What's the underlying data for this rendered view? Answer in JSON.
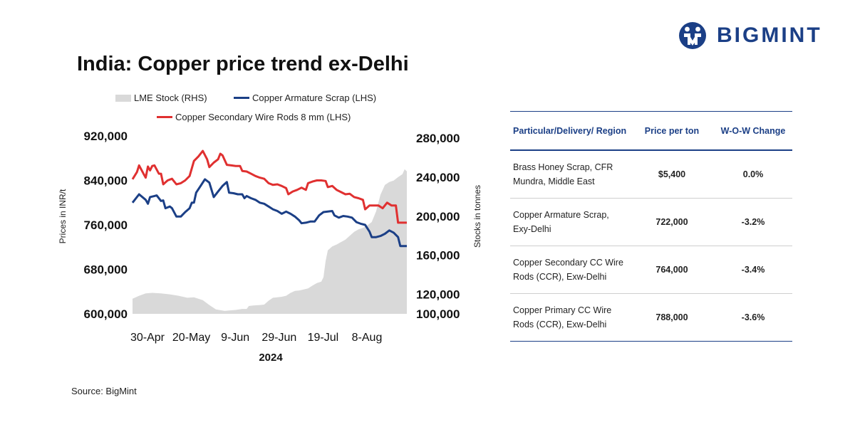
{
  "brand": {
    "name": "BIGMINT",
    "color": "#1b3f86"
  },
  "title": "India: Copper price trend ex-Delhi",
  "source": "Source: BigMint",
  "chart_data": {
    "type": "line",
    "title": "India: Copper price trend ex-Delhi",
    "xlabel": "2024",
    "ylabel_left": "Prices in INR/t",
    "ylabel_right": "Stocks in tonnes",
    "ylim_left": [
      600000,
      920000
    ],
    "ylim_right": [
      100000,
      280000
    ],
    "left_ticks": [
      "600,000",
      "680,000",
      "760,000",
      "840,000",
      "920,000"
    ],
    "left_tick_values": [
      600000,
      680000,
      760000,
      840000,
      920000
    ],
    "right_ticks": [
      "100,000",
      "120,000",
      "160,000",
      "200,000",
      "240,000",
      "280,000"
    ],
    "right_tick_values": [
      100000,
      120000,
      160000,
      200000,
      240000,
      280000
    ],
    "x_ticks": [
      "30-Apr",
      "20-May",
      "9-Jun",
      "29-Jun",
      "19-Jul",
      "8-Aug"
    ],
    "x_tick_days": [
      0,
      20,
      40,
      60,
      80,
      100
    ],
    "x_range_days": [
      0,
      115
    ],
    "series": [
      {
        "name": "LME Stock (RHS)",
        "kind": "area",
        "axis": "right",
        "color": "#d9d9d9",
        "points": [
          [
            0,
            115500
          ],
          [
            3,
            118500
          ],
          [
            6,
            121000
          ],
          [
            9,
            121500
          ],
          [
            13,
            121000
          ],
          [
            17,
            120000
          ],
          [
            21,
            118500
          ],
          [
            25,
            116500
          ],
          [
            28,
            117000
          ],
          [
            32,
            114000
          ],
          [
            35,
            109000
          ],
          [
            38,
            104500
          ],
          [
            42,
            103000
          ],
          [
            44,
            103500
          ],
          [
            47,
            104000
          ],
          [
            50,
            105000
          ],
          [
            52,
            105000
          ],
          [
            53,
            108000
          ],
          [
            55,
            108500
          ],
          [
            58,
            109000
          ],
          [
            60,
            109500
          ],
          [
            62,
            113500
          ],
          [
            64,
            116500
          ],
          [
            66,
            117000
          ],
          [
            68,
            117500
          ],
          [
            70,
            118500
          ],
          [
            72,
            121500
          ],
          [
            74,
            123500
          ],
          [
            76,
            124000
          ],
          [
            78,
            125000
          ],
          [
            80,
            126000
          ],
          [
            82,
            129000
          ],
          [
            84,
            131500
          ],
          [
            86,
            133000
          ],
          [
            87,
            137500
          ],
          [
            88,
            154000
          ],
          [
            89,
            165000
          ],
          [
            91,
            169000
          ],
          [
            93,
            171000
          ],
          [
            95,
            173500
          ],
          [
            97,
            176000
          ],
          [
            99,
            180000
          ],
          [
            101,
            184000
          ],
          [
            103,
            186500
          ],
          [
            105,
            188000
          ],
          [
            107,
            190500
          ],
          [
            109,
            194000
          ],
          [
            111,
            205000
          ],
          [
            113,
            222000
          ],
          [
            115,
            232000
          ],
          [
            117,
            235000
          ],
          [
            119,
            236500
          ],
          [
            121,
            240000
          ],
          [
            123,
            243000
          ],
          [
            124,
            248000
          ],
          [
            125,
            246000
          ]
        ]
      },
      {
        "name": "Copper Armature Scrap (LHS)",
        "kind": "line",
        "axis": "left",
        "color": "#1b3f86",
        "points": [
          [
            0,
            800000
          ],
          [
            3,
            815000
          ],
          [
            6,
            805000
          ],
          [
            7,
            798000
          ],
          [
            8,
            810000
          ],
          [
            10,
            812000
          ],
          [
            11,
            813000
          ],
          [
            13,
            803000
          ],
          [
            14,
            804000
          ],
          [
            15,
            790000
          ],
          [
            17,
            793000
          ],
          [
            18,
            790000
          ],
          [
            20,
            775000
          ],
          [
            22,
            775000
          ],
          [
            24,
            783000
          ],
          [
            26,
            790000
          ],
          [
            27,
            800000
          ],
          [
            28,
            800000
          ],
          [
            29,
            818000
          ],
          [
            31,
            830000
          ],
          [
            33,
            842000
          ],
          [
            35,
            836000
          ],
          [
            37,
            810000
          ],
          [
            39,
            820000
          ],
          [
            41,
            830000
          ],
          [
            43,
            837000
          ],
          [
            44,
            818000
          ],
          [
            46,
            817000
          ],
          [
            48,
            815000
          ],
          [
            50,
            815000
          ],
          [
            51,
            808000
          ],
          [
            52,
            812000
          ],
          [
            54,
            808000
          ],
          [
            56,
            805000
          ],
          [
            58,
            800000
          ],
          [
            60,
            798000
          ],
          [
            62,
            793000
          ],
          [
            64,
            788000
          ],
          [
            66,
            785000
          ],
          [
            68,
            780000
          ],
          [
            70,
            784000
          ],
          [
            72,
            780000
          ],
          [
            74,
            775000
          ],
          [
            76,
            768000
          ],
          [
            77,
            763000
          ],
          [
            79,
            764000
          ],
          [
            81,
            766000
          ],
          [
            83,
            766000
          ],
          [
            85,
            777000
          ],
          [
            87,
            783000
          ],
          [
            89,
            784000
          ],
          [
            91,
            785000
          ],
          [
            92,
            777000
          ],
          [
            94,
            773000
          ],
          [
            96,
            776000
          ],
          [
            98,
            775000
          ],
          [
            100,
            773000
          ],
          [
            102,
            765000
          ],
          [
            104,
            762000
          ],
          [
            106,
            760000
          ],
          [
            108,
            748000
          ],
          [
            109,
            738000
          ],
          [
            111,
            738000
          ],
          [
            113,
            740000
          ],
          [
            115,
            744000
          ],
          [
            117,
            750000
          ],
          [
            119,
            746000
          ],
          [
            121,
            738000
          ],
          [
            122,
            722000
          ],
          [
            124,
            722000
          ],
          [
            125,
            722000
          ]
        ]
      },
      {
        "name": "Copper Secondary Wire Rods 8 mm (LHS)",
        "kind": "line",
        "axis": "left",
        "color": "#e03030",
        "points": [
          [
            0,
            842000
          ],
          [
            2,
            855000
          ],
          [
            3,
            867000
          ],
          [
            5,
            852000
          ],
          [
            6,
            845000
          ],
          [
            7,
            865000
          ],
          [
            8,
            858000
          ],
          [
            9,
            866000
          ],
          [
            10,
            867000
          ],
          [
            12,
            852000
          ],
          [
            13,
            852000
          ],
          [
            14,
            833000
          ],
          [
            16,
            840000
          ],
          [
            18,
            843000
          ],
          [
            20,
            833000
          ],
          [
            22,
            835000
          ],
          [
            24,
            840000
          ],
          [
            26,
            848000
          ],
          [
            28,
            875000
          ],
          [
            30,
            883000
          ],
          [
            32,
            893000
          ],
          [
            34,
            878000
          ],
          [
            35,
            864000
          ],
          [
            37,
            872000
          ],
          [
            39,
            878000
          ],
          [
            40,
            888000
          ],
          [
            41,
            885000
          ],
          [
            43,
            868000
          ],
          [
            45,
            867000
          ],
          [
            47,
            866000
          ],
          [
            49,
            866000
          ],
          [
            50,
            857000
          ],
          [
            52,
            856000
          ],
          [
            54,
            852000
          ],
          [
            56,
            848000
          ],
          [
            58,
            845000
          ],
          [
            60,
            843000
          ],
          [
            62,
            835000
          ],
          [
            64,
            832000
          ],
          [
            66,
            833000
          ],
          [
            68,
            830000
          ],
          [
            70,
            826000
          ],
          [
            71,
            815000
          ],
          [
            73,
            820000
          ],
          [
            75,
            823000
          ],
          [
            77,
            827000
          ],
          [
            79,
            823000
          ],
          [
            80,
            835000
          ],
          [
            82,
            838000
          ],
          [
            84,
            840000
          ],
          [
            86,
            840000
          ],
          [
            88,
            839000
          ],
          [
            89,
            828000
          ],
          [
            91,
            830000
          ],
          [
            93,
            823000
          ],
          [
            95,
            819000
          ],
          [
            97,
            815000
          ],
          [
            99,
            816000
          ],
          [
            101,
            810000
          ],
          [
            103,
            808000
          ],
          [
            105,
            805000
          ],
          [
            106,
            788000
          ],
          [
            108,
            795000
          ],
          [
            110,
            795000
          ],
          [
            112,
            795000
          ],
          [
            114,
            790000
          ],
          [
            116,
            800000
          ],
          [
            118,
            795000
          ],
          [
            120,
            795000
          ],
          [
            121,
            764000
          ],
          [
            123,
            764000
          ],
          [
            125,
            764000
          ]
        ]
      }
    ]
  },
  "table": {
    "headers": [
      "Particular/Delivery/ Region",
      "Price per ton",
      "W-O-W Change"
    ],
    "rows": [
      {
        "particular": "Brass Honey Scrap, CFR Mundra, Middle East",
        "price": "$5,400",
        "change": "0.0%",
        "change_color": "#111111"
      },
      {
        "particular": "Copper Armature Scrap, Exy-Delhi",
        "price": "722,000",
        "change": "-3.2%",
        "change_color": "#e03030"
      },
      {
        "particular": "Copper Secondary CC Wire Rods (CCR), Exw-Delhi",
        "price": "764,000",
        "change": "-3.4%",
        "change_color": "#e03030"
      },
      {
        "particular": "Copper Primary CC Wire Rods (CCR), Exw-Delhi",
        "price": "788,000",
        "change": "-3.6%",
        "change_color": "#e03030"
      }
    ]
  }
}
